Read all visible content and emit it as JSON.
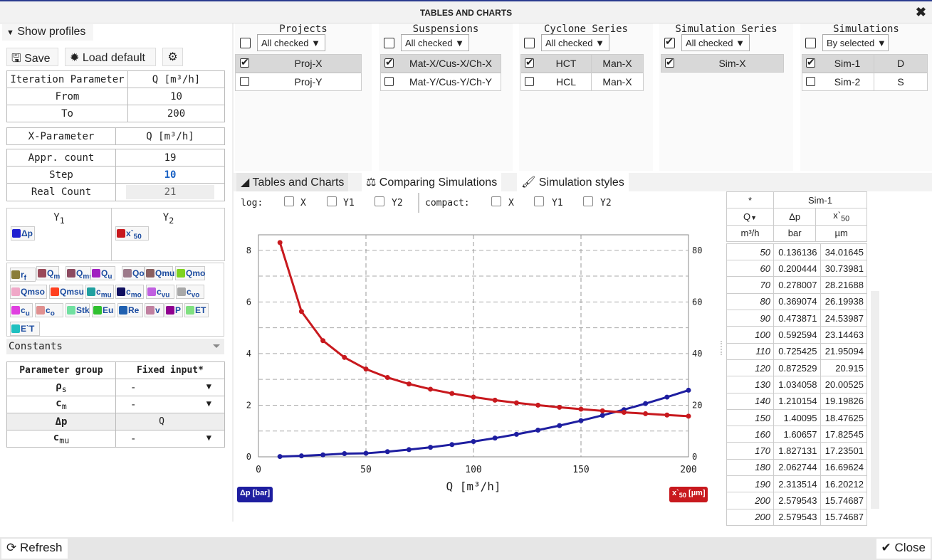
{
  "window": {
    "title": "TABLES AND CHARTS"
  },
  "left": {
    "show_profiles": "Show profiles",
    "save": "Save",
    "load_default": "Load default",
    "iteration": {
      "label": "Iteration Parameter",
      "value": "Q [m³/h]",
      "from_label": "From",
      "from": "10",
      "to_label": "To",
      "to": "200"
    },
    "xparam": {
      "label": "X-Parameter",
      "value": "Q [m³/h]"
    },
    "appr": {
      "label": "Appr. count",
      "value": "19"
    },
    "step": {
      "label": "Step",
      "value": "10"
    },
    "real": {
      "label": "Real Count",
      "value": "21"
    },
    "y1": {
      "label": "Y",
      "sub": "1",
      "chip": "Δp"
    },
    "y2": {
      "label": "Y",
      "sub": "2",
      "chip": "x`",
      "chip_sub": "50"
    },
    "chips": [
      {
        "t": "r",
        "s": "f",
        "c": "#8a7d3a"
      },
      {
        "t": "Q",
        "s": "m",
        "c": "#9a4a5a"
      },
      {
        "t": "Q",
        "s": "ms",
        "c": "#8c4a60"
      },
      {
        "t": "Q",
        "s": "u",
        "c": "#a020c0"
      },
      {
        "t": "Qo",
        "s": "",
        "c": "#9c7a8a"
      },
      {
        "t": "Qmu",
        "s": "",
        "c": "#8a6060"
      },
      {
        "t": "Qmo",
        "s": "",
        "c": "#7ed320"
      },
      {
        "t": "Qmso",
        "s": "",
        "c": "#f0a8c8"
      },
      {
        "t": "Qmsu",
        "s": "",
        "c": "#ff4020"
      },
      {
        "t": "c",
        "s": "mu",
        "c": "#20a0a0"
      },
      {
        "t": "c",
        "s": "mo",
        "c": "#101060"
      },
      {
        "t": "c",
        "s": "vu",
        "c": "#c060e0"
      },
      {
        "t": "c",
        "s": "vo",
        "c": "#a8a8a8"
      },
      {
        "t": "c",
        "s": "u",
        "c": "#e040e0"
      },
      {
        "t": "c",
        "s": "o",
        "c": "#e09090"
      },
      {
        "t": "Stk",
        "s": "",
        "c": "#70e0a0"
      },
      {
        "t": "Eu",
        "s": "",
        "c": "#30c030"
      },
      {
        "t": "Re",
        "s": "",
        "c": "#2060b0"
      },
      {
        "t": "v",
        "s": "",
        "c": "#c080a0"
      },
      {
        "t": "P",
        "s": "",
        "c": "#900090"
      },
      {
        "t": "ET",
        "s": "",
        "c": "#80e080"
      },
      {
        "t": "E`T",
        "s": "",
        "c": "#20c0c0"
      }
    ],
    "constants": "Constants",
    "params": {
      "h1": "Parameter group",
      "h2": "Fixed input*",
      "rows": [
        {
          "n": "ρ",
          "s": "s",
          "v": "-"
        },
        {
          "n": "c",
          "s": "m",
          "v": "-"
        },
        {
          "n": "Δp",
          "s": "",
          "v": "Q"
        },
        {
          "n": "c",
          "s": "mu",
          "v": "-"
        }
      ]
    }
  },
  "filters": {
    "projects": {
      "title": "Projects",
      "drop": "All checked",
      "rows": [
        {
          "a": "Proj-X",
          "on": true
        },
        {
          "a": "Proj-Y",
          "on": false
        }
      ]
    },
    "suspensions": {
      "title": "Suspensions",
      "drop": "All checked",
      "rows": [
        {
          "a": "Mat-X/Cus-X/Ch-X",
          "on": true
        },
        {
          "a": "Mat-Y/Cus-Y/Ch-Y",
          "on": false
        }
      ]
    },
    "cyclone": {
      "title": "Cyclone Series",
      "drop": "All checked",
      "rows": [
        {
          "a": "HCT",
          "b": "Man-X",
          "on": true
        },
        {
          "a": "HCL",
          "b": "Man-X",
          "on": false
        }
      ]
    },
    "simseries": {
      "title": "Simulation Series",
      "drop": "All checked",
      "rows": [
        {
          "a": "Sim-X",
          "on": true
        }
      ]
    },
    "sims": {
      "title": "Simulations",
      "drop": "By selected",
      "rows": [
        {
          "a": "Sim-1",
          "b": "D",
          "on": true
        },
        {
          "a": "Sim-2",
          "b": "S",
          "on": false
        }
      ]
    }
  },
  "tabs": [
    {
      "label": "Tables and Charts",
      "icon": "area-chart-icon"
    },
    {
      "label": "Comparing Simulations",
      "icon": "balance-scale-icon"
    },
    {
      "label": "Simulation styles",
      "icon": "paint-brush-icon"
    }
  ],
  "chartopts": {
    "log": "log:",
    "compact": "compact:",
    "x": "X",
    "y1": "Y1",
    "y2": "Y2"
  },
  "chart_data": {
    "type": "line",
    "xlabel": "Q [m³/h]",
    "xlim": [
      0,
      200
    ],
    "ylim": [
      0,
      8.6
    ],
    "y2lim": [
      0,
      86
    ],
    "xticks": [
      0,
      50,
      100,
      150,
      200
    ],
    "yticks": [
      0,
      2,
      4,
      6,
      8
    ],
    "y2ticks": [
      0,
      20,
      40,
      60,
      80
    ],
    "x": [
      10,
      20,
      30,
      40,
      50,
      60,
      70,
      80,
      90,
      100,
      110,
      120,
      130,
      140,
      150,
      160,
      170,
      180,
      190,
      200
    ],
    "series": [
      {
        "name": "Δp [bar]",
        "axis": "y1",
        "color": "#1e1ea0",
        "values": [
          0.0114,
          0.0367,
          0.0744,
          0.1224,
          0.136136,
          0.200444,
          0.278007,
          0.369074,
          0.473871,
          0.592594,
          0.725425,
          0.872529,
          1.034058,
          1.210154,
          1.40095,
          1.60657,
          1.827131,
          2.062744,
          2.313514,
          2.579543
        ]
      },
      {
        "name": "x`50 [µm]",
        "axis": "y2",
        "color": "#c8191e",
        "values": [
          83.0,
          56.3,
          45.0,
          38.5,
          34.01645,
          30.73981,
          28.21688,
          26.19938,
          24.53987,
          23.14463,
          21.95094,
          20.915,
          20.00525,
          19.19826,
          18.47625,
          17.82545,
          17.23501,
          16.69624,
          16.20212,
          15.74687
        ]
      }
    ],
    "grid": true
  },
  "legend": {
    "y1": "Δp [bar]",
    "y2": "x`",
    "y2sub": "50",
    "y2unit": "[µm]"
  },
  "table": {
    "star": "*",
    "col": "Sim-1",
    "h": [
      "Q",
      "Δp",
      "x`"
    ],
    "hsub": "50",
    "u": [
      "m³/h",
      "bar",
      "µm"
    ],
    "rows": [
      [
        "50",
        "0.136136",
        "34.01645"
      ],
      [
        "60",
        "0.200444",
        "30.73981"
      ],
      [
        "70",
        "0.278007",
        "28.21688"
      ],
      [
        "80",
        "0.369074",
        "26.19938"
      ],
      [
        "90",
        "0.473871",
        "24.53987"
      ],
      [
        "100",
        "0.592594",
        "23.14463"
      ],
      [
        "110",
        "0.725425",
        "21.95094"
      ],
      [
        "120",
        "0.872529",
        "20.915"
      ],
      [
        "130",
        "1.034058",
        "20.00525"
      ],
      [
        "140",
        "1.210154",
        "19.19826"
      ],
      [
        "150",
        "1.40095",
        "18.47625"
      ],
      [
        "160",
        "1.60657",
        "17.82545"
      ],
      [
        "170",
        "1.827131",
        "17.23501"
      ],
      [
        "180",
        "2.062744",
        "16.69624"
      ],
      [
        "190",
        "2.313514",
        "16.20212"
      ],
      [
        "200",
        "2.579543",
        "15.74687"
      ],
      [
        "200",
        "2.579543",
        "15.74687"
      ]
    ]
  },
  "bottom": {
    "refresh": "Refresh",
    "close": "Close"
  }
}
